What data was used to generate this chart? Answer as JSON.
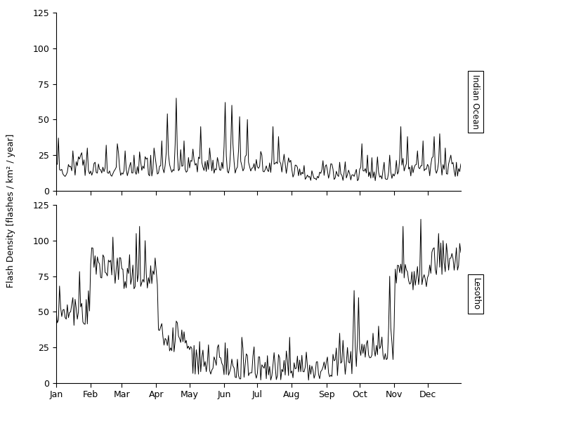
{
  "title": "",
  "ylabel": "Flash Density [flashes / km² / year]",
  "xlabel": "",
  "panel1_label": "Indian Ocean",
  "panel2_label": "Lesotho",
  "ylim": [
    0,
    125
  ],
  "yticks": [
    0,
    25,
    50,
    75,
    100,
    125
  ],
  "month_labels": [
    "Jan",
    "Feb",
    "Mar",
    "Apr",
    "May",
    "Jun",
    "Jul",
    "Aug",
    "Sep",
    "Oct",
    "Nov",
    "Dec"
  ],
  "month_tick_positions": [
    0,
    31,
    59,
    90,
    120,
    151,
    181,
    212,
    243,
    273,
    304,
    334
  ],
  "n_days": 365,
  "line_color": "#000000",
  "line_width": 0.7,
  "background_color": "#ffffff",
  "indian_ocean_seed": 10,
  "lesotho_seed": 20,
  "label_fontsize": 8.5,
  "tick_fontsize": 9,
  "ylabel_fontsize": 9
}
